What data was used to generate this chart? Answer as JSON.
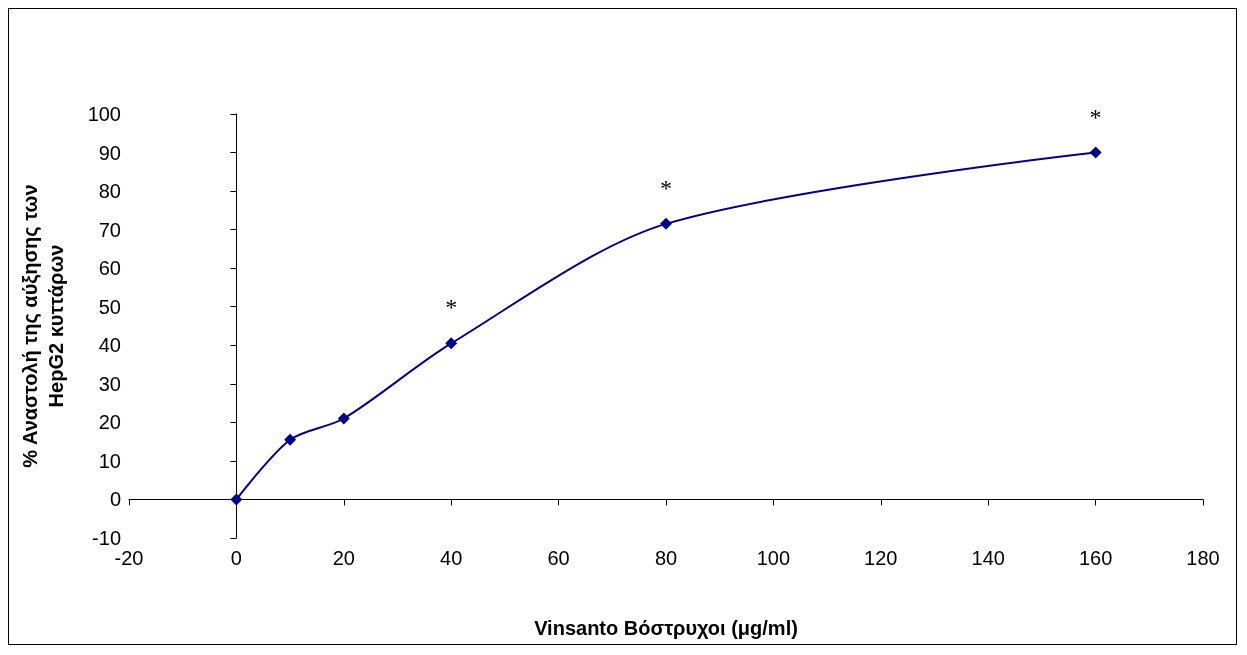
{
  "chart_data": {
    "type": "line",
    "xlabel": "Vinsanto Βόστρυχοι (μg/ml)",
    "ylabel": "% Αναστολή της αύξησης των HepG2 κυττάρων",
    "x": [
      0,
      10,
      20,
      40,
      80,
      160
    ],
    "series": [
      {
        "color": "#00008b",
        "values": [
          0,
          15.5,
          21,
          40.5,
          71.5,
          90
        ]
      }
    ],
    "xlim": [
      -20,
      180
    ],
    "xticks": [
      -20,
      0,
      20,
      40,
      60,
      80,
      100,
      120,
      140,
      160,
      180
    ],
    "ylim": [
      -10,
      100
    ],
    "yticks": [
      -10,
      0,
      10,
      20,
      30,
      40,
      50,
      60,
      70,
      80,
      90,
      100
    ],
    "marker": "diamond",
    "line_style": "solid",
    "annotations": [
      {
        "text": "*",
        "x": 40,
        "y": 40.5
      },
      {
        "text": "*",
        "x": 80,
        "y": 71.5
      },
      {
        "text": "*",
        "x": 160,
        "y": 90
      }
    ]
  }
}
